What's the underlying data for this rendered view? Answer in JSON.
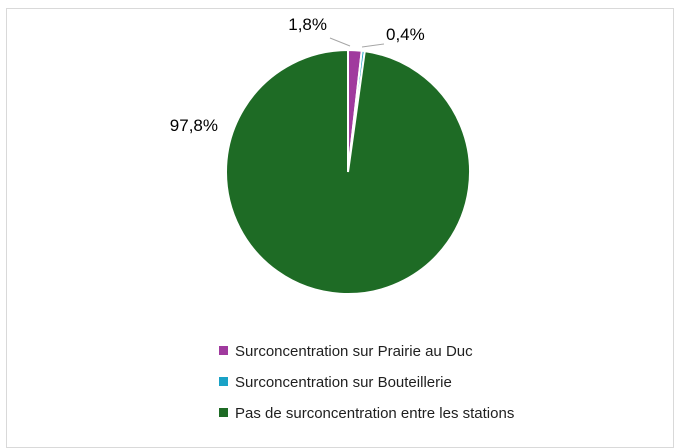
{
  "chart_data": {
    "type": "pie",
    "categories": [
      "Surconcentration sur Prairie au Duc",
      "Surconcentration sur Bouteillerie",
      "Pas de surconcentration entre les stations"
    ],
    "values": [
      1.8,
      0.4,
      97.8
    ],
    "data_labels": [
      "1,8%",
      "0,4%",
      "97,8%"
    ],
    "colors": [
      "#a03a9e",
      "#1aa2c6",
      "#1e6b25"
    ],
    "legend_position": "bottom"
  }
}
